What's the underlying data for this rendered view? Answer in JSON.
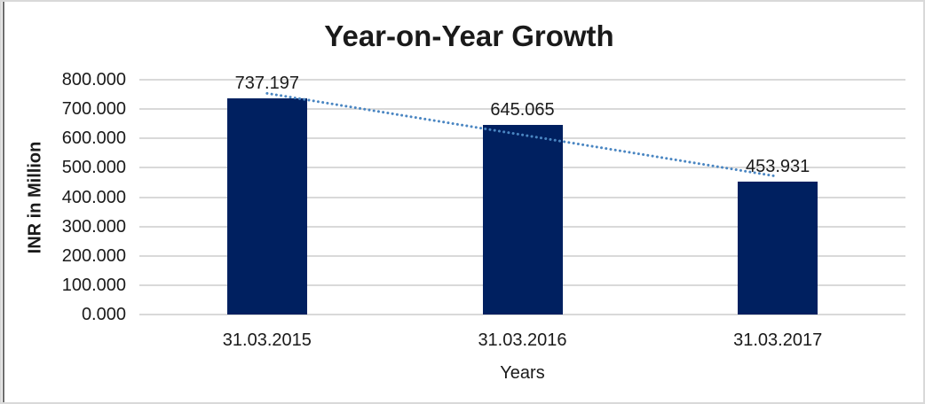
{
  "chart_data": {
    "type": "bar",
    "title": "Year-on-Year Growth",
    "categories": [
      "31.03.2015",
      "31.03.2016",
      "31.03.2017"
    ],
    "values": [
      737.197,
      645.065,
      453.931
    ],
    "data_labels": [
      "737.197",
      "645.065",
      "453.931"
    ],
    "xlabel": "Years",
    "ylabel": "INR in Million",
    "ylim": [
      0,
      800
    ],
    "ytick_step": 100,
    "ytick_labels": [
      "0.000",
      "100.000",
      "200.000",
      "300.000",
      "400.000",
      "500.000",
      "600.000",
      "700.000",
      "800.000"
    ],
    "grid": true,
    "legend": false,
    "trendline": {
      "type": "linear",
      "style": "dotted"
    },
    "colors": {
      "bar": "#002060",
      "trendline": "#4a86c2",
      "gridline": "#d9d9d9",
      "text": "#1a1a1a"
    }
  }
}
